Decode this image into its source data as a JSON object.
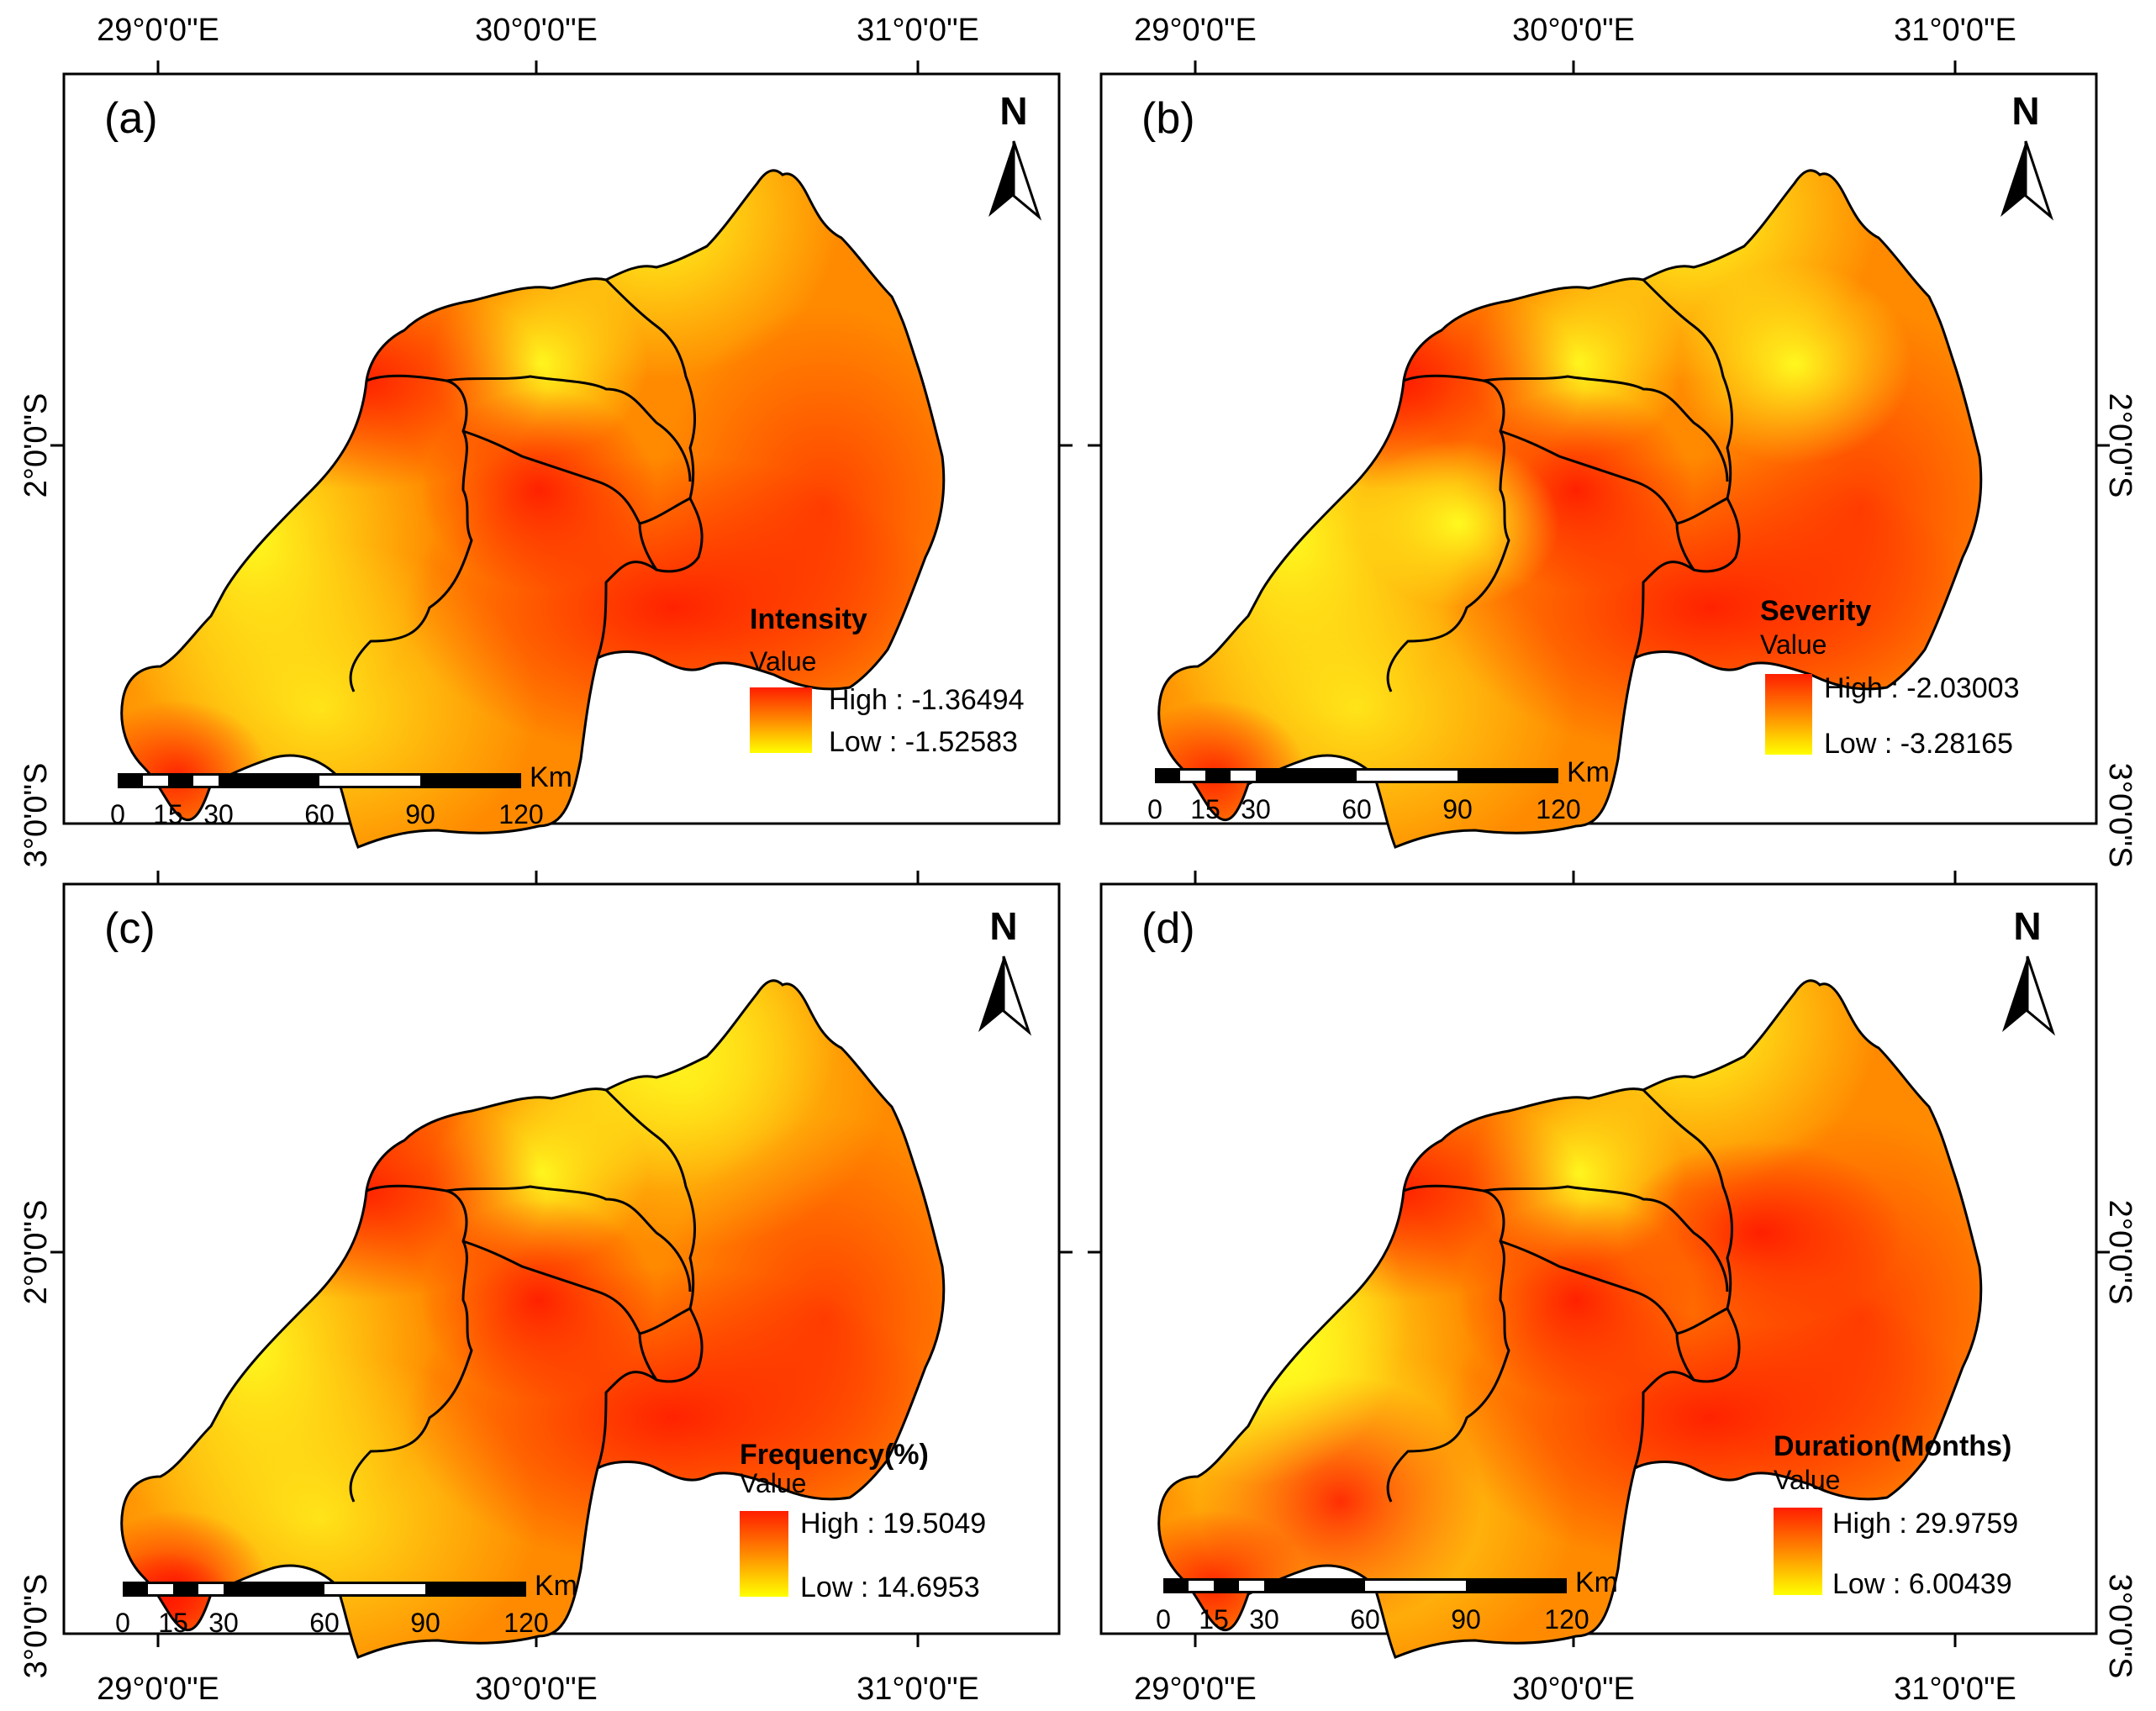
{
  "axes": {
    "lon_top": [
      "29°0'0\"E",
      "30°0'0\"E",
      "31°0'0\"E"
    ],
    "lon_bottom": [
      "29°0'0\"E",
      "30°0'0\"E",
      "31°0'0\"E"
    ],
    "lat_left": [
      "2°0'0\"S",
      "3°0'0\"S",
      "2°0'0\"S",
      "3°0'0\"S"
    ],
    "lat_right": [
      "2°0'0\"S",
      "3°0'0\"S",
      "2°0'0\"S",
      "3°0'0\"S"
    ]
  },
  "north_label": "N",
  "scale": {
    "unit": "Km",
    "ticks": [
      "0",
      "15",
      "30",
      "60",
      "90",
      "120"
    ]
  },
  "panels": [
    {
      "label": "(a)",
      "legend_title": "Intensity",
      "legend_subtitle": "Value",
      "high": "High : -1.36494",
      "low": "Low : -1.52583"
    },
    {
      "label": "(b)",
      "legend_title": "Severity",
      "legend_subtitle": "Value",
      "high": "High : -2.03003",
      "low": "Low : -3.28165"
    },
    {
      "label": "(c)",
      "legend_title": "Frequency(%)",
      "legend_subtitle": "Value",
      "high": "High : 19.5049",
      "low": "Low : 14.6953"
    },
    {
      "label": "(d)",
      "legend_title": "Duration(Months)",
      "legend_subtitle": "Value",
      "high": "High : 29.9759",
      "low": "Low : 6.00439"
    }
  ],
  "colors": {
    "high": "#ff1e00",
    "mid": "#ff8a00",
    "low": "#ffff00",
    "border": "#000000"
  }
}
